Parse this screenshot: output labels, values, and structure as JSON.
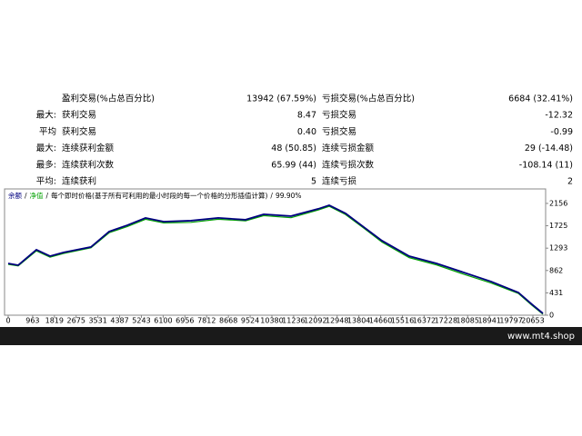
{
  "table": {
    "rows": [
      {
        "win_name": "盈利交易(%占总百分比)",
        "win_value": "13942 (67.59%)",
        "loss_name": "亏损交易(%占总百分比)",
        "loss_value": "6684 (32.41%)"
      },
      {
        "label": "最大:",
        "win_name": "获利交易",
        "win_value": "8.47",
        "loss_name": "亏损交易",
        "loss_value": "-12.32"
      },
      {
        "label": "平均",
        "win_name": "获利交易",
        "win_value": "0.40",
        "loss_name": "亏损交易",
        "loss_value": "-0.99"
      },
      {
        "label": "最大:",
        "win_name": "连续获利金额",
        "win_value": "48 (50.85)",
        "loss_name": "连续亏损金额",
        "loss_value": "29 (-14.48)"
      },
      {
        "label": "最多:",
        "win_name": "连续获利次数",
        "win_value": "65.99 (44)",
        "loss_name": "连续亏损次数",
        "loss_value": "-108.14 (11)"
      },
      {
        "label": "平均:",
        "win_name": "连续获利",
        "win_value": "5",
        "loss_name": "连续亏损",
        "loss_value": "2"
      }
    ]
  },
  "chart_data": {
    "type": "line",
    "separator": "/",
    "model": "每个即时价格(基于所有可利用的最小时段的每一个价格的分形插值计算)",
    "quality": "99.90%",
    "x": [
      0,
      394,
      1110,
      1647,
      2183,
      3257,
      3973,
      4689,
      5405,
      6121,
      7195,
      8268,
      9342,
      10058,
      11132,
      12206,
      12635,
      13280,
      13995,
      14711,
      15785,
      16859,
      17933,
      19006,
      20080,
      20617,
      21047
    ],
    "series": [
      {
        "name": "余额",
        "color": "#000080",
        "values": [
          999,
          964,
          1262,
          1139,
          1210,
          1315,
          1613,
          1735,
          1876,
          1805,
          1823,
          1876,
          1841,
          1946,
          1911,
          2051,
          2121,
          1963,
          1700,
          1437,
          1139,
          999,
          824,
          649,
          438,
          210,
          35
        ]
      },
      {
        "name": "净值",
        "color": "#00a000",
        "values": [
          980,
          950,
          1240,
          1120,
          1190,
          1300,
          1590,
          1710,
          1850,
          1780,
          1790,
          1850,
          1820,
          1920,
          1880,
          2030,
          2100,
          1940,
          1680,
          1410,
          1110,
          970,
          790,
          620,
          420,
          190,
          20
        ]
      }
    ],
    "xlim": [
      0,
      21154
    ],
    "ylim": [
      0,
      2435
    ],
    "xticks": [
      0,
      963,
      1819,
      2675,
      3531,
      4387,
      5243,
      6100,
      6956,
      7812,
      8668,
      9524,
      10380,
      11236,
      12092,
      12948,
      13804,
      14660,
      15516,
      16372,
      17228,
      18085,
      18941,
      19797,
      20653
    ],
    "yticks": [
      0,
      431,
      862,
      1293,
      1725,
      2156
    ]
  },
  "footer": {
    "site": "www.mt4.shop"
  }
}
